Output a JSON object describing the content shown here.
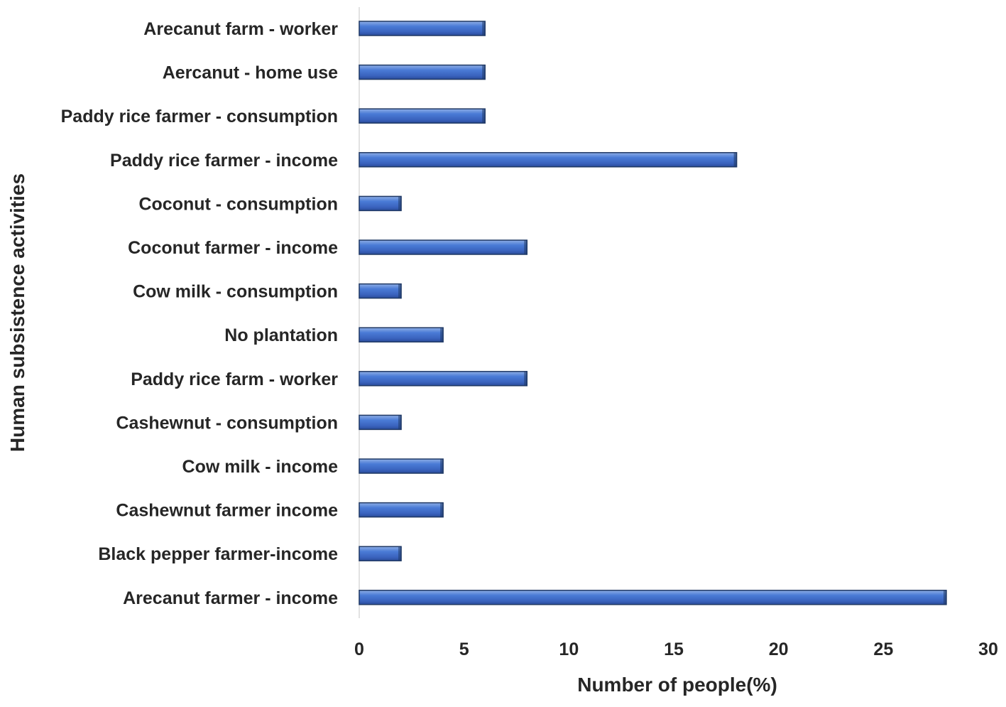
{
  "chart_data": {
    "type": "bar",
    "orientation": "horizontal",
    "title": "",
    "xlabel": "Number of people(%)",
    "ylabel": "Human subsistence activities",
    "xlim": [
      0,
      30
    ],
    "xticks": [
      "0",
      "5",
      "10",
      "15",
      "20",
      "25",
      "30"
    ],
    "grid": false,
    "legend": "none",
    "categories": [
      "Arecanut farm - worker",
      "Aercanut - home use",
      "Paddy rice farmer - consumption",
      "Paddy rice farmer - income",
      "Coconut - consumption",
      "Coconut farmer - income",
      "Cow milk - consumption",
      "No plantation",
      "Paddy rice farm - worker",
      "Cashewnut - consumption",
      "Cow milk - income",
      "Cashewnut farmer income",
      "Black pepper farmer-income",
      "Arecanut farmer - income"
    ],
    "values": [
      6,
      6,
      6,
      18,
      2,
      8,
      2,
      4,
      8,
      2,
      4,
      4,
      2,
      28
    ],
    "bar_color": "#4472C4",
    "bar_edge_color": "#1F3864"
  }
}
